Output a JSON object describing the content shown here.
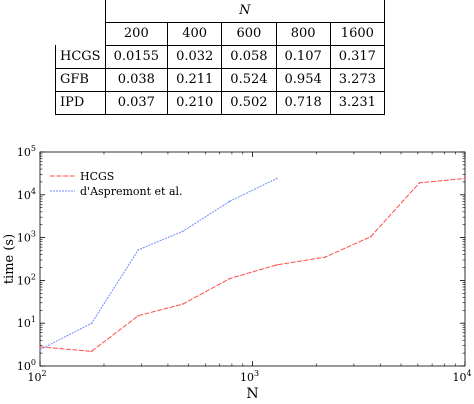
{
  "table": {
    "n_label": "N",
    "n_values": [
      "200",
      "400",
      "600",
      "800",
      "1600"
    ],
    "rows": [
      {
        "method": "HCGS",
        "values": [
          "0.0155",
          "0.032",
          "0.058",
          "0.107",
          "0.317"
        ]
      },
      {
        "method": "GFB",
        "values": [
          "0.038",
          "0.211",
          "0.524",
          "0.954",
          "3.273"
        ]
      },
      {
        "method": "IPD",
        "values": [
          "0.037",
          "0.210",
          "0.502",
          "0.718",
          "3.231"
        ]
      }
    ]
  },
  "chart_data": {
    "type": "line",
    "xlabel": "N",
    "ylabel": "time (s)",
    "xscale": "log",
    "yscale": "log",
    "xlim": [
      100,
      10000
    ],
    "ylim": [
      1,
      100000
    ],
    "x_ticks": [
      {
        "value": 100,
        "base": "10",
        "exp": "2"
      },
      {
        "value": 1000,
        "base": "10",
        "exp": "3"
      },
      {
        "value": 10000,
        "base": "10",
        "exp": "4"
      }
    ],
    "y_ticks": [
      {
        "value": 1,
        "base": "10",
        "exp": "0"
      },
      {
        "value": 10,
        "base": "10",
        "exp": "1"
      },
      {
        "value": 100,
        "base": "10",
        "exp": "2"
      },
      {
        "value": 1000,
        "base": "10",
        "exp": "3"
      },
      {
        "value": 10000,
        "base": "10",
        "exp": "4"
      },
      {
        "value": 100000,
        "base": "10",
        "exp": "5"
      }
    ],
    "legend_position": "top-left",
    "series": [
      {
        "name": "HCGS",
        "color": "#ff4d4d",
        "x": [
          100,
          175,
          290,
          470,
          780,
          1300,
          2200,
          3600,
          6100,
          10000
        ],
        "y": [
          2.8,
          2.2,
          15,
          28,
          110,
          230,
          350,
          1050,
          19000,
          24000
        ]
      },
      {
        "name": "d'Aspremont et al.",
        "color": "#6f8cff",
        "x": [
          100,
          175,
          290,
          470,
          780,
          1300
        ],
        "y": [
          2.4,
          10,
          520,
          1400,
          7000,
          24000
        ]
      }
    ]
  }
}
